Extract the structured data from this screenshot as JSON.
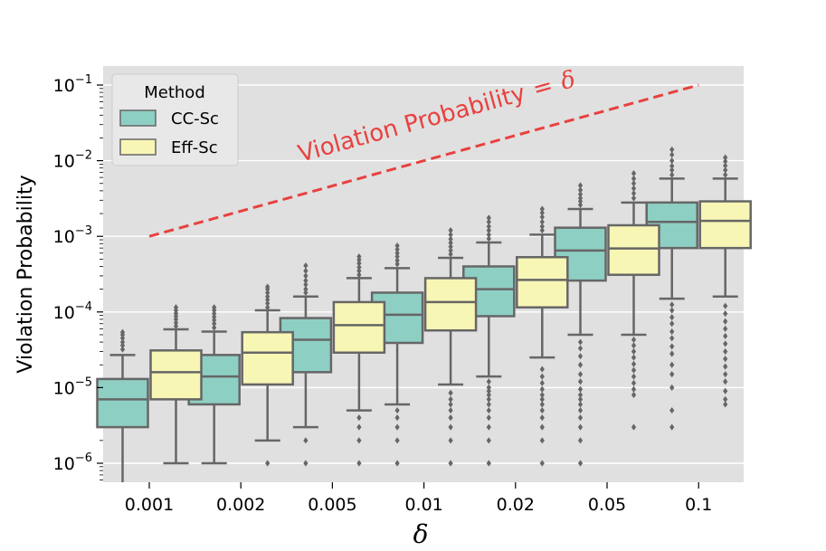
{
  "chart_data": {
    "type": "box",
    "title": "",
    "xlabel": "δ",
    "ylabel": "Violation Probability",
    "yscale": "log",
    "ylim": [
      5.5e-07,
      0.13
    ],
    "y_ticks": [
      {
        "value": 1e-06,
        "base": "10",
        "exp": "−6"
      },
      {
        "value": 1e-05,
        "base": "10",
        "exp": "−5"
      },
      {
        "value": 0.0001,
        "base": "10",
        "exp": "−4"
      },
      {
        "value": 0.001,
        "base": "10",
        "exp": "−3"
      },
      {
        "value": 0.01,
        "base": "10",
        "exp": "−2"
      },
      {
        "value": 0.1,
        "base": "10",
        "exp": "−1"
      }
    ],
    "categories": [
      "0.001",
      "0.002",
      "0.005",
      "0.01",
      "0.02",
      "0.05",
      "0.1"
    ],
    "category_values": [
      0.001,
      0.002,
      0.005,
      0.01,
      0.02,
      0.05,
      0.1
    ],
    "legend": {
      "title": "Method",
      "location": "top-left"
    },
    "series": [
      {
        "name": "CC-Sc",
        "color": "#8ecfc3",
        "boxes": [
          {
            "q1": 3e-06,
            "median": 7e-06,
            "q3": 1.3e-05,
            "whisker_low": 5.5e-07,
            "whisker_high": 2.7e-05,
            "outliers": [
              3.2e-05,
              3.6e-05,
              4e-05,
              4.5e-05,
              5e-05,
              5.4e-05
            ]
          },
          {
            "q1": 6e-06,
            "median": 1.4e-05,
            "q3": 2.7e-05,
            "whisker_low": 1e-06,
            "whisker_high": 5.5e-05,
            "outliers": [
              6.2e-05,
              7e-05,
              7.8e-05,
              8.6e-05,
              9.5e-05,
              0.000105,
              0.000115
            ]
          },
          {
            "q1": 1.6e-05,
            "median": 4.3e-05,
            "q3": 8.3e-05,
            "whisker_low": 3e-06,
            "whisker_high": 0.00016,
            "outliers": [
              1e-06,
              2e-06,
              0.00018,
              0.0002,
              0.00023,
              0.00026,
              0.0003,
              0.00035,
              0.00041
            ]
          },
          {
            "q1": 3.9e-05,
            "median": 9.2e-05,
            "q3": 0.00018,
            "whisker_low": 6e-06,
            "whisker_high": 0.00038,
            "outliers": [
              1e-06,
              2e-06,
              3e-06,
              4e-06,
              5e-06,
              0.00043,
              0.00048,
              0.00054,
              0.0006,
              0.00067,
              0.00075
            ]
          },
          {
            "q1": 8.8e-05,
            "median": 0.0002,
            "q3": 0.0004,
            "whisker_low": 1.4e-05,
            "whisker_high": 0.00083,
            "outliers": [
              1e-06,
              2e-06,
              3e-06,
              4e-06,
              5e-06,
              6e-06,
              7e-06,
              8e-06,
              9e-06,
              1e-05,
              1.2e-05,
              0.00093,
              0.00105,
              0.0012,
              0.00135,
              0.00155,
              0.00175
            ]
          },
          {
            "q1": 0.00026,
            "median": 0.00065,
            "q3": 0.0013,
            "whisker_low": 5e-05,
            "whisker_high": 0.0023,
            "outliers": [
              1e-06,
              2e-06,
              3e-06,
              4e-06,
              5e-06,
              6e-06,
              7e-06,
              8e-06,
              9.5e-06,
              1.2e-05,
              1.5e-05,
              2e-05,
              2.6e-05,
              3.3e-05,
              4e-05,
              0.0026,
              0.0029,
              0.0032,
              0.0036,
              0.0041,
              0.0047
            ]
          },
          {
            "q1": 0.0007,
            "median": 0.00155,
            "q3": 0.0028,
            "whisker_low": 0.00015,
            "whisker_high": 0.0058,
            "outliers": [
              3e-06,
              5e-06,
              1e-05,
              1.5e-05,
              2e-05,
              2.8e-05,
              3.5e-05,
              4.5e-05,
              5.5e-05,
              7e-05,
              8.5e-05,
              0.000105,
              0.000125,
              0.0065,
              0.0075,
              0.0085,
              0.01,
              0.012,
              0.014
            ]
          }
        ]
      },
      {
        "name": "Eff-Sc",
        "color": "#f8f6b5",
        "boxes": [
          {
            "q1": 7e-06,
            "median": 1.6e-05,
            "q3": 3.1e-05,
            "whisker_low": 1e-06,
            "whisker_high": 5.9e-05,
            "outliers": [
              6.5e-05,
              7.2e-05,
              8e-05,
              8.8e-05,
              9.6e-05,
              0.000105,
              0.000115
            ]
          },
          {
            "q1": 1.1e-05,
            "median": 2.9e-05,
            "q3": 5.4e-05,
            "whisker_low": 2e-06,
            "whisker_high": 0.000105,
            "outliers": [
              1e-06,
              0.000115,
              0.00013,
              0.000145,
              0.00016,
              0.00018,
              0.0002,
              0.000215
            ]
          },
          {
            "q1": 2.9e-05,
            "median": 6.7e-05,
            "q3": 0.000135,
            "whisker_low": 5e-06,
            "whisker_high": 0.00028,
            "outliers": [
              1e-06,
              2e-06,
              3e-06,
              4e-06,
              0.00031,
              0.00035,
              0.00039,
              0.00044,
              0.00049,
              0.00054
            ]
          },
          {
            "q1": 5.7e-05,
            "median": 0.000135,
            "q3": 0.00028,
            "whisker_low": 1.1e-05,
            "whisker_high": 0.00052,
            "outliers": [
              1e-06,
              2e-06,
              3e-06,
              4e-06,
              5e-06,
              6e-06,
              7e-06,
              8.5e-06,
              0.00058,
              0.00065,
              0.00073,
              0.00082,
              0.00092,
              0.00105,
              0.0012
            ]
          },
          {
            "q1": 0.000115,
            "median": 0.000265,
            "q3": 0.00053,
            "whisker_low": 2.5e-05,
            "whisker_high": 0.00105,
            "outliers": [
              1e-06,
              2e-06,
              3e-06,
              4e-06,
              5e-06,
              6e-06,
              7e-06,
              8e-06,
              9.5e-06,
              1.15e-05,
              1.4e-05,
              1.75e-05,
              0.0012,
              0.00135,
              0.00155,
              0.0018,
              0.00205,
              0.0023
            ]
          },
          {
            "q1": 0.00031,
            "median": 0.00069,
            "q3": 0.0014,
            "whisker_low": 5e-05,
            "whisker_high": 0.0028,
            "outliers": [
              3e-06,
              8e-06,
              9.5e-06,
              1.15e-05,
              1.4e-05,
              1.7e-05,
              2.05e-05,
              2.5e-05,
              3e-05,
              3.6e-05,
              4.3e-05,
              0.0032,
              0.0037,
              0.0043,
              0.005,
              0.0058,
              0.0068
            ]
          },
          {
            "q1": 0.0007,
            "median": 0.0016,
            "q3": 0.0029,
            "whisker_low": 0.00016,
            "whisker_high": 0.0058,
            "outliers": [
              6e-06,
              7e-06,
              9e-06,
              1.2e-05,
              1.5e-05,
              1.9e-05,
              2.4e-05,
              3e-05,
              3.8e-05,
              4.8e-05,
              6e-05,
              7.5e-05,
              9.5e-05,
              0.00012,
              0.0065,
              0.0075,
              0.0086,
              0.0098,
              0.011
            ]
          }
        ]
      }
    ],
    "reference_line": {
      "label_text": "Violation Probability",
      "label_equals": "=",
      "label_symbol": "δ",
      "from_category": "0.001",
      "to_category": "0.1",
      "y_from": 0.001,
      "y_to": 0.1,
      "color": "#e8413f",
      "style": "dashed"
    },
    "colors": {
      "background": "#e0e0e0",
      "grid": "#ffffff",
      "box_edge": "#666666",
      "outlier": "#666666"
    }
  }
}
